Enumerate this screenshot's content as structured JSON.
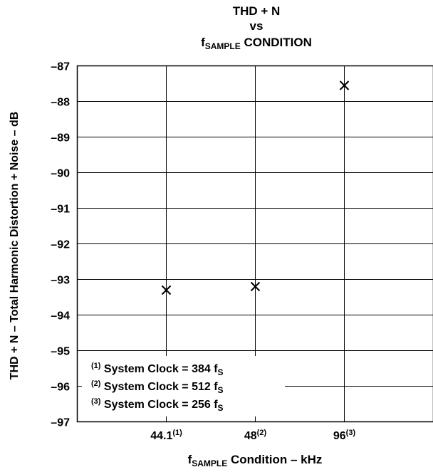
{
  "chart_data": {
    "type": "scatter",
    "title": {
      "line1": "THD + N",
      "line2": "vs",
      "line3_prefix": "f",
      "line3_sub": "SAMPLE",
      "line3_rest": " CONDITION"
    },
    "xlabel": {
      "prefix": "f",
      "sub": "SAMPLE",
      "rest": " Condition – kHz"
    },
    "ylabel": "THD + N – Total Harmonic Distortion + Noise – dB",
    "ylim": [
      -97,
      -87
    ],
    "y_ticks": [
      "–87",
      "–88",
      "–89",
      "–90",
      "–91",
      "–92",
      "–93",
      "–94",
      "–95",
      "–96",
      "–97"
    ],
    "categories": [
      {
        "label": "44.1",
        "note": "(1)"
      },
      {
        "label": "48",
        "note": "(2)"
      },
      {
        "label": "96",
        "note": "(3)"
      }
    ],
    "values": [
      -93.3,
      -93.2,
      -87.55
    ],
    "marker": "x",
    "grid": true,
    "legend_position": "bottom-left",
    "notes": [
      {
        "mark": "(1)",
        "text": " System Clock = 384 f",
        "sub": "S"
      },
      {
        "mark": "(2)",
        "text": " System Clock = 512 f",
        "sub": "S"
      },
      {
        "mark": "(3)",
        "text": " System Clock = 256 f",
        "sub": "S"
      }
    ]
  }
}
